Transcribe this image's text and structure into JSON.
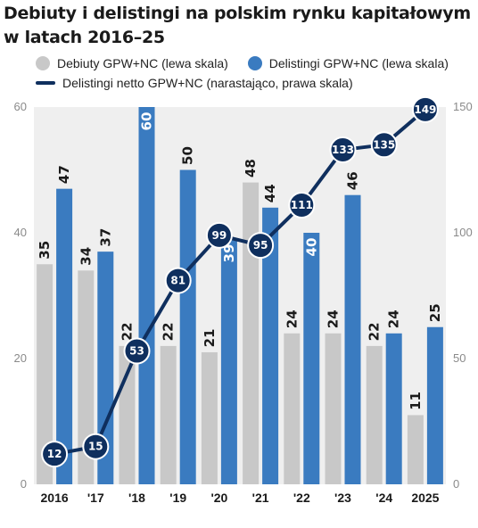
{
  "title": "Debiuty i delistingi na polskim rynku kapitałowym w latach 2016–25",
  "colors": {
    "debuts": "#c8c8c8",
    "delistings": "#3a7bc0",
    "net": "#0f2f5e",
    "plot_bg": "#efefef",
    "label_dark": "#1a1a1a",
    "label_light": "#ffffff"
  },
  "legend": {
    "debuts": "Debiuty GPW+NC (lewa skala)",
    "delistings": "Delistingi GPW+NC (lewa skala)",
    "net": "Delistingi netto GPW+NC (narastająco, prawa skala)"
  },
  "chart_data": {
    "type": "bar",
    "categories": [
      "2016",
      "'17",
      "'18",
      "'19",
      "'20",
      "'21",
      "'22",
      "'23",
      "'24",
      "2025"
    ],
    "series": [
      {
        "name": "Debiuty GPW+NC (lewa skala)",
        "type": "bar",
        "axis": "left",
        "values": [
          35,
          34,
          22,
          22,
          21,
          48,
          24,
          24,
          22,
          11
        ]
      },
      {
        "name": "Delistingi GPW+NC (lewa skala)",
        "type": "bar",
        "axis": "left",
        "values": [
          47,
          37,
          60,
          50,
          39,
          44,
          40,
          46,
          24,
          25
        ]
      },
      {
        "name": "Delistingi netto GPW+NC (narastająco, prawa skala)",
        "type": "line",
        "axis": "right",
        "values": [
          12,
          15,
          53,
          81,
          99,
          95,
          111,
          133,
          135,
          149
        ]
      }
    ],
    "left_ylim": [
      0,
      60
    ],
    "right_ylim": [
      0,
      150
    ],
    "left_ticks": [
      0,
      20,
      40,
      60
    ],
    "right_ticks": [
      0,
      50,
      100,
      150
    ],
    "grid": false,
    "legend_position": "top"
  }
}
